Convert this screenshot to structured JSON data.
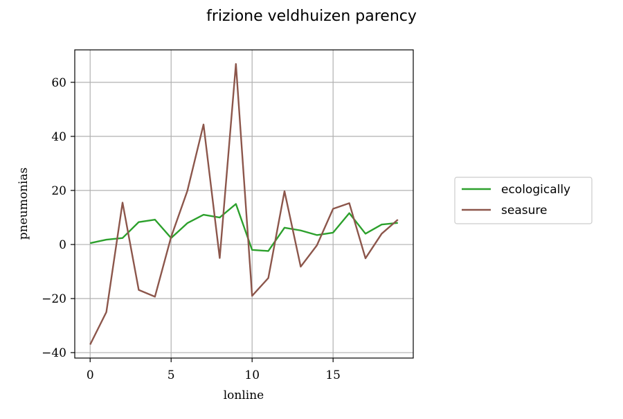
{
  "chart_data": {
    "type": "line",
    "title": "frizione veldhuizen parency",
    "xlabel": "lonline",
    "ylabel": "pneumonias",
    "xlim": [
      -0.95,
      19.95
    ],
    "ylim": [
      -42,
      72
    ],
    "x_ticks": [
      0,
      5,
      10,
      15
    ],
    "y_ticks": [
      -40,
      -20,
      0,
      20,
      40,
      60
    ],
    "grid": true,
    "legend_position": "outside-right",
    "x": [
      0,
      1,
      2,
      3,
      4,
      5,
      6,
      7,
      8,
      9,
      10,
      11,
      12,
      13,
      14,
      15,
      16,
      17,
      18,
      19
    ],
    "series": [
      {
        "name": "ecologically",
        "color": "#2ca02c",
        "values": [
          0.5,
          1.8,
          2.4,
          8.3,
          9.2,
          2.4,
          7.9,
          11.0,
          10.0,
          15.0,
          -2.0,
          -2.4,
          6.2,
          5.2,
          3.5,
          4.4,
          11.6,
          4.0,
          7.4,
          8.0
        ]
      },
      {
        "name": "seasure",
        "color": "#8c564b",
        "values": [
          -37.0,
          -25.0,
          15.5,
          -16.8,
          -19.3,
          2.8,
          19.8,
          44.4,
          -5.0,
          66.8,
          -19.0,
          -12.4,
          19.7,
          -8.2,
          -0.3,
          13.2,
          15.3,
          -5.1,
          4.0,
          9.2
        ]
      }
    ]
  }
}
